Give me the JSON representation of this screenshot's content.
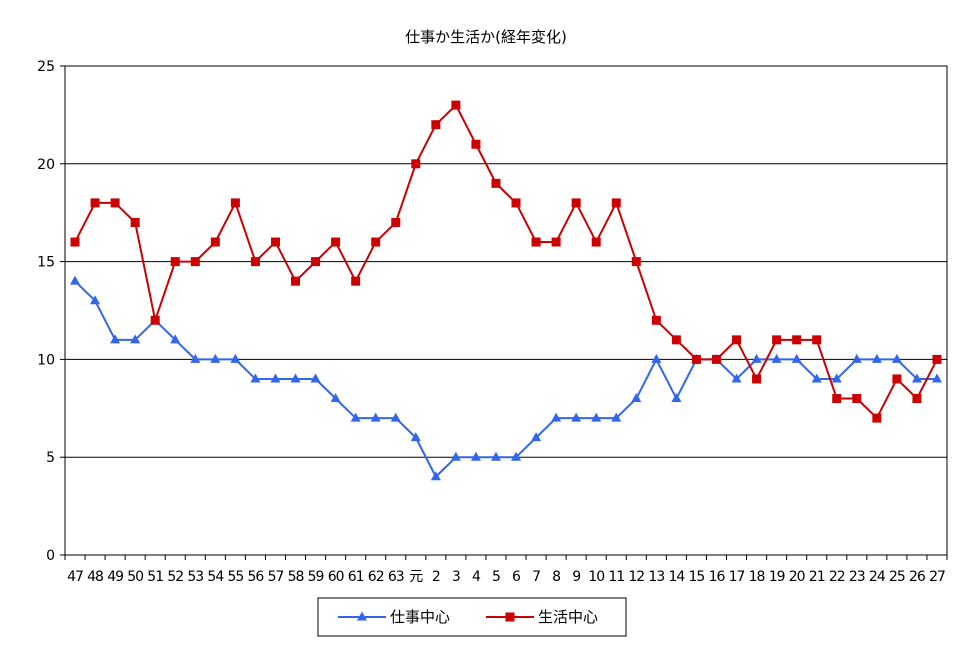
{
  "chart_data": {
    "type": "line",
    "title": "仕事か生活か(経年変化)",
    "xlabel": "",
    "ylabel": "",
    "ylim": [
      0,
      25
    ],
    "yticks": [
      0,
      5,
      10,
      15,
      20,
      25
    ],
    "grid": true,
    "legend_position": "bottom",
    "categories": [
      "47",
      "48",
      "49",
      "50",
      "51",
      "52",
      "53",
      "54",
      "55",
      "56",
      "57",
      "58",
      "59",
      "60",
      "61",
      "62",
      "63",
      "元",
      "2",
      "3",
      "4",
      "5",
      "6",
      "7",
      "8",
      "9",
      "10",
      "11",
      "12",
      "13",
      "14",
      "15",
      "16",
      "17",
      "18",
      "19",
      "20",
      "21",
      "22",
      "23",
      "24",
      "25",
      "26",
      "27"
    ],
    "series": [
      {
        "name": "仕事中心",
        "color": "#3366ee",
        "marker": "triangle",
        "values": [
          14,
          13,
          11,
          11,
          12,
          11,
          10,
          10,
          10,
          9,
          9,
          9,
          9,
          8,
          7,
          7,
          7,
          6,
          4,
          5,
          5,
          5,
          5,
          6,
          7,
          7,
          7,
          7,
          8,
          10,
          8,
          10,
          10,
          9,
          10,
          10,
          10,
          9,
          9,
          10,
          10,
          10,
          9,
          9
        ]
      },
      {
        "name": "生活中心",
        "color": "#cc0000",
        "marker": "square",
        "values": [
          16,
          18,
          18,
          17,
          12,
          15,
          15,
          16,
          18,
          15,
          16,
          14,
          15,
          16,
          14,
          16,
          17,
          20,
          22,
          23,
          21,
          19,
          18,
          16,
          16,
          18,
          16,
          18,
          15,
          12,
          11,
          10,
          10,
          11,
          9,
          11,
          11,
          11,
          8,
          8,
          7,
          9,
          8,
          10
        ]
      }
    ]
  }
}
